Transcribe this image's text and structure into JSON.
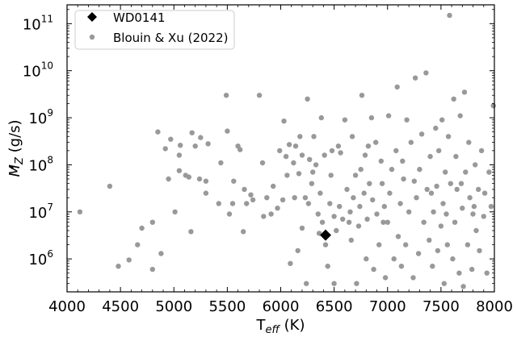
{
  "chart_data": {
    "type": "scatter",
    "xlabel": "T",
    "xlabel_sub": "eff",
    "xlabel_unit": " (K)",
    "ylabel": "M",
    "ylabel_sub": "Z",
    "ylabel_unit": " (g/s)",
    "xlim": [
      4000,
      8000
    ],
    "ylim_log10": [
      5.3,
      11.4
    ],
    "yscale": "log",
    "grid": false,
    "legend_position": "top-left",
    "x_ticks": [
      4000,
      4500,
      5000,
      5500,
      6000,
      6500,
      7000,
      7500,
      8000
    ],
    "x_tick_labels": [
      "4000",
      "4500",
      "5000",
      "5500",
      "6000",
      "6500",
      "7000",
      "7500",
      "8000"
    ],
    "y_ticks": [
      {
        "base": "10",
        "exp": "6",
        "log10": 6
      },
      {
        "base": "10",
        "exp": "7",
        "log10": 7
      },
      {
        "base": "10",
        "exp": "8",
        "log10": 8
      },
      {
        "base": "10",
        "exp": "9",
        "log10": 9
      },
      {
        "base": "10",
        "exp": "10",
        "log10": 10
      },
      {
        "base": "10",
        "exp": "11",
        "log10": 11
      }
    ],
    "series": [
      {
        "name": "WD0141",
        "marker": "diamond",
        "color": "#000000",
        "points": [
          [
            6420,
            3200000.0
          ]
        ]
      },
      {
        "name": "Blouin & Xu (2022)",
        "marker": "circle",
        "color": "#999999",
        "points": [
          [
            4120,
            10000000.0
          ],
          [
            4400,
            35000000.0
          ],
          [
            4480,
            700000.0
          ],
          [
            4580,
            950000.0
          ],
          [
            4660,
            2000000.0
          ],
          [
            4700,
            4500000.0
          ],
          [
            4800,
            600000.0
          ],
          [
            4800,
            6000000.0
          ],
          [
            4850,
            500000000.0
          ],
          [
            4880,
            1300000.0
          ],
          [
            4920,
            220000000.0
          ],
          [
            4950,
            50000000.0
          ],
          [
            4970,
            350000000.0
          ],
          [
            5010,
            10000000.0
          ],
          [
            5050,
            75000000.0
          ],
          [
            5050,
            160000000.0
          ],
          [
            5060,
            260000000.0
          ],
          [
            5110,
            60000000.0
          ],
          [
            5140,
            55000000.0
          ],
          [
            5160,
            3800000.0
          ],
          [
            5170,
            480000000.0
          ],
          [
            5200,
            250000000.0
          ],
          [
            5240,
            50000000.0
          ],
          [
            5250,
            380000000.0
          ],
          [
            5300,
            25000000.0
          ],
          [
            5300,
            45000000.0
          ],
          [
            5320,
            280000000.0
          ],
          [
            5420,
            15000000.0
          ],
          [
            5440,
            110000000.0
          ],
          [
            5490,
            3000000000.0
          ],
          [
            5500,
            520000000.0
          ],
          [
            5520,
            9000000.0
          ],
          [
            5550,
            15000000.0
          ],
          [
            5560,
            45000000.0
          ],
          [
            5600,
            250000000.0
          ],
          [
            5620,
            210000000.0
          ],
          [
            5650,
            3800000.0
          ],
          [
            5660,
            30000000.0
          ],
          [
            5680,
            15000000.0
          ],
          [
            5720,
            23000000.0
          ],
          [
            5740,
            18000000.0
          ],
          [
            5800,
            3000000000.0
          ],
          [
            5830,
            110000000.0
          ],
          [
            5840,
            8000000.0
          ],
          [
            5870,
            20000000.0
          ],
          [
            5910,
            9000000.0
          ],
          [
            5930,
            35000000.0
          ],
          [
            5970,
            12000000.0
          ],
          [
            5990,
            200000000.0
          ],
          [
            6020,
            18000000.0
          ],
          [
            6030,
            850000000.0
          ],
          [
            6050,
            150000000.0
          ],
          [
            6060,
            60000000.0
          ],
          [
            6080,
            270000000.0
          ],
          [
            6090,
            800000.0
          ],
          [
            6120,
            110000000.0
          ],
          [
            6130,
            20000000.0
          ],
          [
            6160,
            1500000.0
          ],
          [
            6170,
            65000000.0
          ],
          [
            6180,
            400000000.0
          ],
          [
            6200,
            4500000.0
          ],
          [
            6200,
            160000000.0
          ],
          [
            6230,
            20000000.0
          ],
          [
            6240,
            300000.0
          ],
          [
            6250,
            2500000000.0
          ],
          [
            6270,
            130000000.0
          ],
          [
            6290,
            40000000.0
          ],
          [
            6300,
            70000000.0
          ],
          [
            6310,
            400000000.0
          ],
          [
            6330,
            100000000.0
          ],
          [
            6350,
            9000000.0
          ],
          [
            6370,
            25000000.0
          ],
          [
            6380,
            1000000000.0
          ],
          [
            6390,
            6000000.0
          ],
          [
            6410,
            160000000.0
          ],
          [
            6420,
            2000000.0
          ],
          [
            6440,
            700000.0
          ],
          [
            6460,
            15000000.0
          ],
          [
            6470,
            60000000.0
          ],
          [
            6480,
            200000000.0
          ],
          [
            6500,
            300000.0
          ],
          [
            6500,
            8000000.0
          ],
          [
            6520,
            4000000.0
          ],
          [
            6540,
            250000000.0
          ],
          [
            6550,
            13000000.0
          ],
          [
            6580,
            7000000.0
          ],
          [
            6600,
            900000000.0
          ],
          [
            6620,
            30000000.0
          ],
          [
            6650,
            10000000.0
          ],
          [
            6660,
            2500000.0
          ],
          [
            6670,
            400000000.0
          ],
          [
            6680,
            20000000.0
          ],
          [
            6700,
            60000000.0
          ],
          [
            6710,
            300000.0
          ],
          [
            6730,
            5000000.0
          ],
          [
            6740,
            13000000.0
          ],
          [
            6750,
            80000000.0
          ],
          [
            6760,
            3000000000.0
          ],
          [
            6780,
            25000000.0
          ],
          [
            6790,
            160000000.0
          ],
          [
            6800,
            1000000.0
          ],
          [
            6810,
            7000000.0
          ],
          [
            6830,
            40000000.0
          ],
          [
            6850,
            1000000000.0
          ],
          [
            6860,
            18000000.0
          ],
          [
            6870,
            600000.0
          ],
          [
            6890,
            300000000.0
          ],
          [
            6900,
            9000000.0
          ],
          [
            6920,
            2000000.0
          ],
          [
            6940,
            120000000.0
          ],
          [
            6950,
            40000000.0
          ],
          [
            6970,
            13000000.0
          ],
          [
            6980,
            400000.0
          ],
          [
            7000,
            6000000.0
          ],
          [
            7010,
            1100000000.0
          ],
          [
            7020,
            25000000.0
          ],
          [
            7040,
            80000000.0
          ],
          [
            7060,
            1000000.0
          ],
          [
            7080,
            200000000.0
          ],
          [
            7090,
            4500000000.0
          ],
          [
            7100,
            3000000.0
          ],
          [
            7120,
            15000000.0
          ],
          [
            7130,
            700000.0
          ],
          [
            7150,
            50000000.0
          ],
          [
            7170,
            2000000.0
          ],
          [
            7180,
            900000000.0
          ],
          [
            7200,
            10000000.0
          ],
          [
            7220,
            300000000.0
          ],
          [
            7240,
            400000.0
          ],
          [
            7260,
            7000000000.0
          ],
          [
            7270,
            20000000.0
          ],
          [
            7290,
            1300000.0
          ],
          [
            7300,
            80000000.0
          ],
          [
            7320,
            450000000.0
          ],
          [
            7340,
            6000000.0
          ],
          [
            7360,
            9000000000.0
          ],
          [
            7370,
            30000000.0
          ],
          [
            7390,
            2500000.0
          ],
          [
            7400,
            150000000.0
          ],
          [
            7420,
            700000.0
          ],
          [
            7430,
            10000000.0
          ],
          [
            7450,
            600000000.0
          ],
          [
            7460,
            35000000.0
          ],
          [
            7470,
            1500000.0
          ],
          [
            7480,
            200000000.0
          ],
          [
            7500,
            5000000.0
          ],
          [
            7510,
            900000000.0
          ],
          [
            7520,
            15000000.0
          ],
          [
            7530,
            300000.0
          ],
          [
            7540,
            70000000.0
          ],
          [
            7560,
            2000000.0
          ],
          [
            7570,
            400000000.0
          ],
          [
            7580,
            150000000000.0
          ],
          [
            7590,
            40000000.0
          ],
          [
            7610,
            1000000.0
          ],
          [
            7620,
            2500000000.0
          ],
          [
            7630,
            6000000.0
          ],
          [
            7640,
            150000000.0
          ],
          [
            7650,
            30000000.0
          ],
          [
            7670,
            500000.0
          ],
          [
            7680,
            1100000000.0
          ],
          [
            7700,
            12000000.0
          ],
          [
            7710,
            260000.0
          ],
          [
            7720,
            3500000000.0
          ],
          [
            7730,
            70000000.0
          ],
          [
            7750,
            2000000.0
          ],
          [
            7760,
            300000000.0
          ],
          [
            7770,
            20000000.0
          ],
          [
            7790,
            600000.0
          ],
          [
            7800,
            9000000.0
          ],
          [
            7820,
            100000000.0
          ],
          [
            7830,
            4000000.0
          ],
          [
            7850,
            30000000.0
          ],
          [
            7860,
            1500000.0
          ],
          [
            7880,
            200000000.0
          ],
          [
            7900,
            8000000.0
          ],
          [
            7910,
            25000000.0
          ],
          [
            7930,
            500000.0
          ],
          [
            7950,
            70000000.0
          ],
          [
            7970,
            13000000.0
          ],
          [
            7990,
            1800000000.0
          ],
          [
            6140,
            250000000.0
          ],
          [
            6260,
            15000000.0
          ],
          [
            6360,
            3500000.0
          ],
          [
            6560,
            180000000.0
          ],
          [
            6640,
            6000000.0
          ],
          [
            6820,
            250000000.0
          ],
          [
            6960,
            6000000.0
          ],
          [
            7140,
            120000000.0
          ],
          [
            7250,
            45000000.0
          ],
          [
            7410,
            25000000.0
          ],
          [
            7550,
            9000000.0
          ],
          [
            7690,
            40000000.0
          ],
          [
            7810,
            13000000.0
          ]
        ]
      }
    ]
  }
}
